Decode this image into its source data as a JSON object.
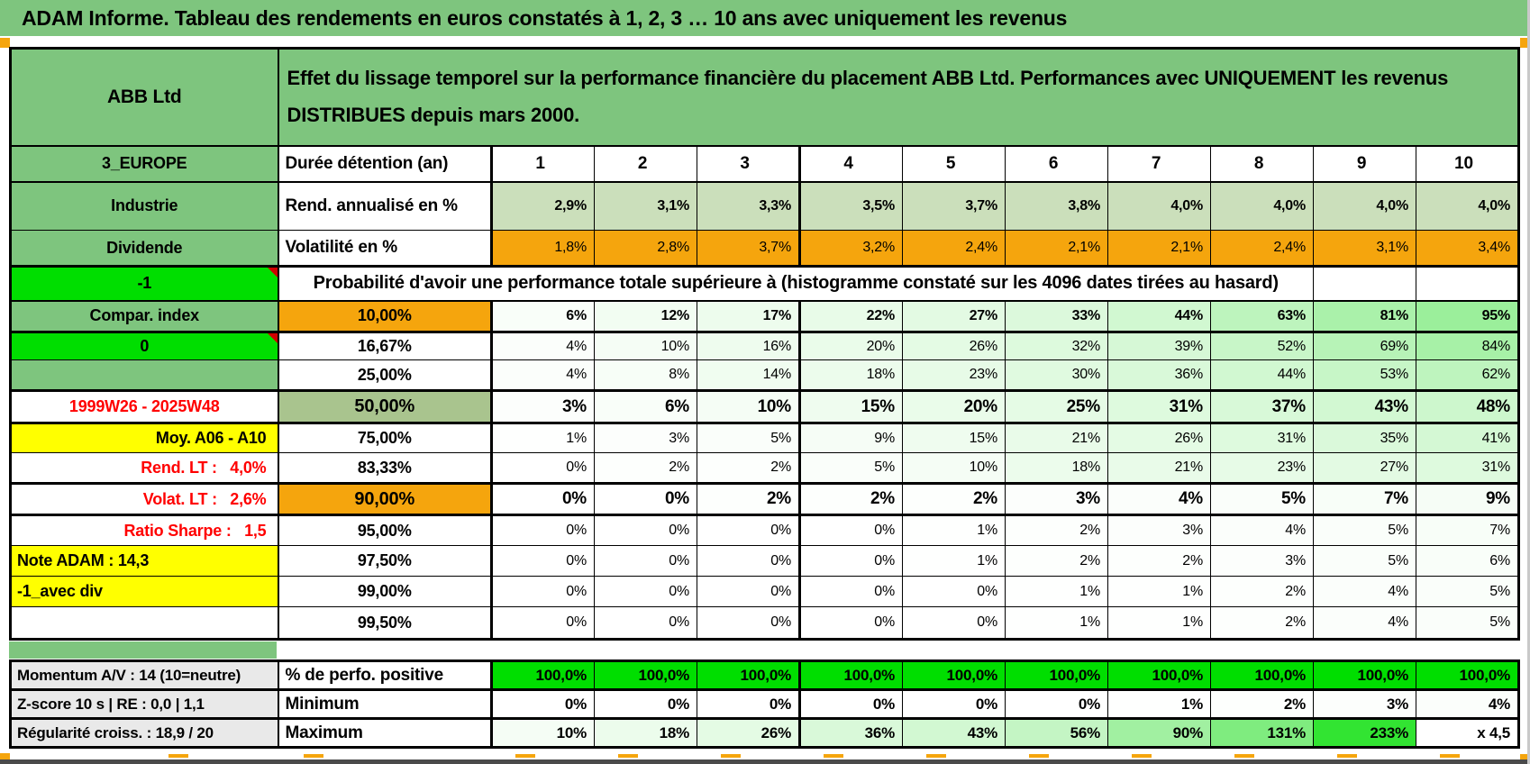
{
  "page": {
    "title": "ADAM Informe. Tableau des rendements en euros constatés à 1, 2, 3 … 10 ans avec uniquement les revenus"
  },
  "colors": {
    "header_green": "#7EC57E",
    "light_sage": "#CBDFBB",
    "sage_dark": "#A9C48E",
    "orange": "#F5A50D",
    "bright_green": "#00DE00",
    "yellow": "#FFFF00",
    "gray_label": "#E9E9E9",
    "red_text": "#FF0000"
  },
  "main_table": {
    "rows": [
      {
        "a": {
          "text": "ABB Ltd",
          "style": "green"
        },
        "merged": {
          "text": "Effet du lissage temporel sur la performance financière du placement ABB Ltd. Performances avec UNIQUEMENT les revenus DISTRIBUES depuis mars 2000.",
          "style": "bighead",
          "span": 11
        }
      },
      {
        "a": {
          "text": "3_EUROPE",
          "style": "green"
        },
        "b": {
          "text": "Durée détention (an)",
          "style": "label-left"
        },
        "values": [
          "1",
          "2",
          "3",
          "4",
          "5",
          "6",
          "7",
          "8",
          "9",
          "10"
        ],
        "values_style": "colhead"
      },
      {
        "a": {
          "text": "Industrie",
          "style": "green"
        },
        "b": {
          "text": "Rend. annualisé en %",
          "style": "label-left"
        },
        "values": [
          "2,9%",
          "3,1%",
          "3,3%",
          "3,5%",
          "3,7%",
          "3,8%",
          "4,0%",
          "4,0%",
          "4,0%",
          "4,0%"
        ],
        "values_style": "sage",
        "values_bold": true
      },
      {
        "a": {
          "text": "Dividende",
          "style": "green"
        },
        "b": {
          "text": "Volatilité en %",
          "style": "label-left"
        },
        "values": [
          "1,8%",
          "2,8%",
          "3,7%",
          "3,2%",
          "2,4%",
          "2,1%",
          "2,1%",
          "2,4%",
          "3,1%",
          "3,4%"
        ],
        "values_style": "orange"
      },
      {
        "a": {
          "text": "-1",
          "style": "bright",
          "note": true
        },
        "merged": {
          "text": "Probabilité d'avoir une performance totale supérieure à (histogramme constaté sur les 4096 dates tirées au hasard)",
          "style": "probhead",
          "span": 9
        },
        "trailing_empty": 2
      },
      {
        "a": {
          "text": "Compar. index",
          "style": "green"
        },
        "b": {
          "text": "10,00%",
          "style": "orange-label"
        },
        "values": [
          "6%",
          "12%",
          "17%",
          "22%",
          "27%",
          "33%",
          "44%",
          "63%",
          "81%",
          "95%"
        ],
        "values_style": "scale",
        "values_bold": true
      },
      {
        "a": {
          "text": "0",
          "style": "bright",
          "note": true
        },
        "b": {
          "text": "16,67%",
          "style": "plain-label"
        },
        "values": [
          "4%",
          "10%",
          "16%",
          "20%",
          "26%",
          "32%",
          "39%",
          "52%",
          "69%",
          "84%"
        ],
        "values_style": "scale"
      },
      {
        "a": {
          "text": "",
          "style": "green"
        },
        "b": {
          "text": "25,00%",
          "style": "plain-label"
        },
        "values": [
          "4%",
          "8%",
          "14%",
          "18%",
          "23%",
          "30%",
          "36%",
          "44%",
          "53%",
          "62%"
        ],
        "values_style": "scale"
      },
      {
        "a": {
          "text": "1999W26 - 2025W48",
          "style": "red-center"
        },
        "b": {
          "text": "50,00%",
          "style": "sage-label",
          "large": true
        },
        "values": [
          "3%",
          "6%",
          "10%",
          "15%",
          "20%",
          "25%",
          "31%",
          "37%",
          "43%",
          "48%"
        ],
        "values_style": "scale",
        "values_bold": true,
        "values_large": true
      },
      {
        "a": {
          "text": "Moy. A06 - A10",
          "style": "yellow-right"
        },
        "b": {
          "text": "75,00%",
          "style": "plain-label"
        },
        "values": [
          "1%",
          "3%",
          "5%",
          "9%",
          "15%",
          "21%",
          "26%",
          "31%",
          "35%",
          "41%"
        ],
        "values_style": "scale"
      },
      {
        "a": {
          "text": "Rend. LT :   4,0%",
          "style": "red-right"
        },
        "b": {
          "text": "83,33%",
          "style": "plain-label"
        },
        "values": [
          "0%",
          "2%",
          "2%",
          "5%",
          "10%",
          "18%",
          "21%",
          "23%",
          "27%",
          "31%"
        ],
        "values_style": "scale"
      },
      {
        "a": {
          "text": "Volat. LT :   2,6%",
          "style": "red-right"
        },
        "b": {
          "text": "90,00%",
          "style": "orange-label",
          "large": true
        },
        "values": [
          "0%",
          "0%",
          "2%",
          "2%",
          "2%",
          "3%",
          "4%",
          "5%",
          "7%",
          "9%"
        ],
        "values_style": "scale",
        "values_bold": true,
        "values_large": true
      },
      {
        "a": {
          "text": "Ratio Sharpe :   1,5",
          "style": "red-right"
        },
        "b": {
          "text": "95,00%",
          "style": "plain-label"
        },
        "values": [
          "0%",
          "0%",
          "0%",
          "0%",
          "1%",
          "2%",
          "3%",
          "4%",
          "5%",
          "7%"
        ],
        "values_style": "scale"
      },
      {
        "a": {
          "text": "Note ADAM : 14,3",
          "style": "yellow-left"
        },
        "b": {
          "text": "97,50%",
          "style": "plain-label"
        },
        "values": [
          "0%",
          "0%",
          "0%",
          "0%",
          "1%",
          "2%",
          "2%",
          "3%",
          "5%",
          "6%"
        ],
        "values_style": "scale"
      },
      {
        "a": {
          "text": "-1_avec div",
          "style": "yellow-left"
        },
        "b": {
          "text": "99,00%",
          "style": "plain-label"
        },
        "values": [
          "0%",
          "0%",
          "0%",
          "0%",
          "0%",
          "1%",
          "1%",
          "2%",
          "4%",
          "5%"
        ],
        "values_style": "scale"
      },
      {
        "a": {
          "text": "",
          "style": "white"
        },
        "b": {
          "text": "99,50%",
          "style": "plain-label"
        },
        "values": [
          "0%",
          "0%",
          "0%",
          "0%",
          "0%",
          "1%",
          "1%",
          "2%",
          "4%",
          "5%"
        ],
        "values_style": "scale"
      }
    ]
  },
  "summary_table": {
    "rows": [
      {
        "a": {
          "text": "Momentum A/V : 14 (10=neutre)",
          "style": "gray-left"
        },
        "b": {
          "text": "% de perfo. positive",
          "style": "label-left"
        },
        "values": [
          "100,0%",
          "100,0%",
          "100,0%",
          "100,0%",
          "100,0%",
          "100,0%",
          "100,0%",
          "100,0%",
          "100,0%",
          "100,0%"
        ],
        "values_style": "bright",
        "values_bold": true
      },
      {
        "a": {
          "text": "Z-score 10 s | RE : 0,0 | 1,1",
          "style": "gray-left"
        },
        "b": {
          "text": "Minimum",
          "style": "label-left"
        },
        "values": [
          "0%",
          "0%",
          "0%",
          "0%",
          "0%",
          "0%",
          "1%",
          "2%",
          "3%",
          "4%"
        ],
        "values_style": "scale",
        "values_bold": true
      },
      {
        "a": {
          "text": "Régularité croiss. : 18,9 / 20",
          "style": "gray-left"
        },
        "b": {
          "text": "Maximum",
          "style": "label-left"
        },
        "values": [
          "10%",
          "18%",
          "26%",
          "36%",
          "43%",
          "56%",
          "90%",
          "131%",
          "233%",
          "x 4,5"
        ],
        "values_style": "scale",
        "values_bold": true
      }
    ]
  }
}
